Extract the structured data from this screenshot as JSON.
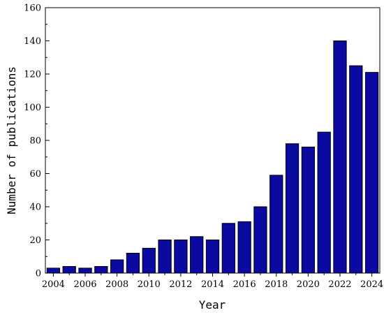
{
  "chart_data": {
    "type": "bar",
    "categories": [
      "2004",
      "2005",
      "2006",
      "2007",
      "2008",
      "2009",
      "2010",
      "2011",
      "2012",
      "2013",
      "2014",
      "2015",
      "2016",
      "2017",
      "2018",
      "2019",
      "2020",
      "2021",
      "2022",
      "2023",
      "2024"
    ],
    "values": [
      3,
      4,
      3,
      4,
      8,
      12,
      15,
      20,
      20,
      22,
      20,
      30,
      31,
      40,
      59,
      78,
      76,
      85,
      140,
      125,
      121
    ],
    "xlabel": "Year",
    "ylabel": "Number of publications",
    "ylim": [
      0,
      160
    ],
    "yticks": [
      0,
      20,
      40,
      60,
      80,
      100,
      120,
      140,
      160
    ],
    "xtick_labels": [
      "2004",
      "2006",
      "2008",
      "2010",
      "2012",
      "2014",
      "2016",
      "2018",
      "2020",
      "2022",
      "2024"
    ],
    "bar_color": "#0a0aa0",
    "grid": false,
    "legend": "none"
  }
}
